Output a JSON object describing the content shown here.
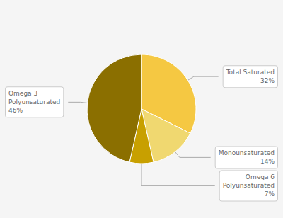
{
  "chart_data": {
    "type": "pie",
    "categories": [
      "Total Saturated",
      "Monounsaturated",
      "Omega 6\nPolyunsaturated",
      "Omega 3\nPolyunsaturated"
    ],
    "values": [
      32,
      14,
      7,
      46
    ],
    "value_labels": [
      "32%",
      "14%",
      "7%",
      "46%"
    ],
    "colors": [
      "#F5C842",
      "#F0D870",
      "#C8A000",
      "#8B6F00"
    ],
    "data_labels": true
  }
}
